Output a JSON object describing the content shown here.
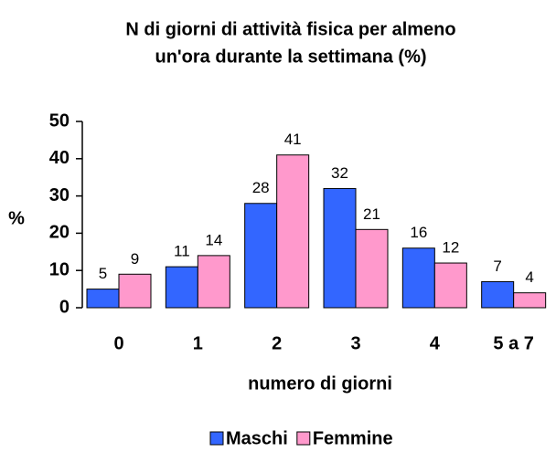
{
  "chart_data": {
    "type": "bar",
    "title": [
      "N di giorni di attività fisica per almeno",
      "un'ora durante la settimana (%)"
    ],
    "x_label": "numero di giorni",
    "y_label": "%",
    "categories": [
      "0",
      "1",
      "2",
      "3",
      "4",
      "5 a 7"
    ],
    "series": [
      {
        "name": "Maschi",
        "color": "#3366ff",
        "values": [
          5,
          11,
          28,
          32,
          16,
          7
        ]
      },
      {
        "name": "Femmine",
        "color": "#ff99cc",
        "values": [
          9,
          14,
          41,
          21,
          12,
          4
        ]
      }
    ],
    "ylim": [
      0,
      50
    ],
    "yticks": [
      0,
      10,
      20,
      30,
      40,
      50
    ],
    "grid": false,
    "legend": "bottom"
  }
}
